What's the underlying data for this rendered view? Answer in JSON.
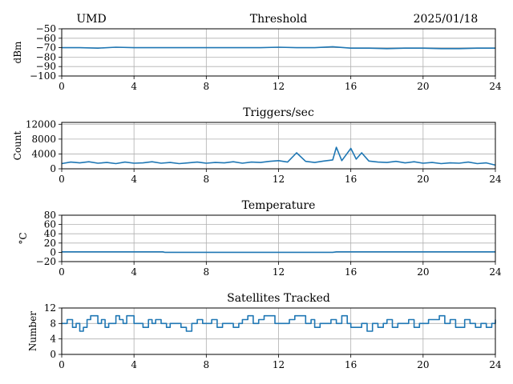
{
  "header": {
    "station": "UMD",
    "date": "2025/01/18"
  },
  "colors": {
    "line": "#1f77b4",
    "grid": "#b0b0b0",
    "axis": "#000000"
  },
  "chart_data": [
    {
      "type": "line",
      "title": "Threshold",
      "ylabel": "dBm",
      "xlim": [
        0,
        24
      ],
      "ylim": [
        -100,
        -50
      ],
      "xticks": [
        "0",
        "4",
        "8",
        "12",
        "16",
        "20",
        "24"
      ],
      "yticks": [
        "−50",
        "−60",
        "−70",
        "−80",
        "−90",
        "−100"
      ],
      "grid": true,
      "series": [
        {
          "x": [
            0,
            1,
            2,
            3,
            4,
            5,
            6,
            7,
            8,
            9,
            10,
            11,
            12,
            13,
            14,
            15,
            16,
            17,
            18,
            19,
            20,
            21,
            22,
            23,
            24
          ],
          "y": [
            -70,
            -70,
            -70.5,
            -69.5,
            -70,
            -70,
            -70,
            -70,
            -70,
            -70,
            -70,
            -70,
            -69.5,
            -70,
            -70,
            -69,
            -70.5,
            -70.5,
            -71,
            -70.5,
            -70.5,
            -71,
            -71,
            -70.5,
            -70.5
          ]
        }
      ]
    },
    {
      "type": "line",
      "title": "Triggers/sec",
      "ylabel": "Count",
      "xlim": [
        0,
        24
      ],
      "ylim": [
        0,
        12500
      ],
      "xticks": [
        "0",
        "4",
        "8",
        "12",
        "16",
        "20",
        "24"
      ],
      "yticks": [
        "12000",
        "8000",
        "4000",
        "0"
      ],
      "grid": true,
      "series": [
        {
          "x": [
            0,
            0.5,
            1,
            1.5,
            2,
            2.5,
            3,
            3.5,
            4,
            4.5,
            5,
            5.5,
            6,
            6.5,
            7,
            7.5,
            8,
            8.5,
            9,
            9.5,
            10,
            10.5,
            11,
            11.5,
            12,
            12.5,
            13,
            13.5,
            14,
            14.5,
            15,
            15.2,
            15.5,
            16,
            16.3,
            16.6,
            17,
            17.5,
            18,
            18.5,
            19,
            19.5,
            20,
            20.5,
            21,
            21.5,
            22,
            22.5,
            23,
            23.5,
            24
          ],
          "y": [
            1400,
            1800,
            1600,
            1900,
            1500,
            1700,
            1400,
            1800,
            1500,
            1600,
            1900,
            1500,
            1700,
            1400,
            1600,
            1800,
            1500,
            1700,
            1600,
            1900,
            1500,
            1800,
            1700,
            2000,
            2200,
            1800,
            4300,
            2000,
            1700,
            2100,
            2400,
            5800,
            2200,
            5500,
            2600,
            4300,
            2100,
            1800,
            1700,
            2000,
            1600,
            1900,
            1500,
            1700,
            1400,
            1600,
            1500,
            1800,
            1400,
            1600,
            1000
          ]
        }
      ]
    },
    {
      "type": "line",
      "title": "Temperature",
      "ylabel": "°C",
      "xlim": [
        0,
        24
      ],
      "ylim": [
        -20,
        80
      ],
      "xticks": [
        "0",
        "4",
        "8",
        "12",
        "16",
        "20",
        "24"
      ],
      "yticks": [
        "80",
        "60",
        "40",
        "20",
        "0",
        "−20"
      ],
      "grid": true,
      "series": [
        {
          "x": [
            0,
            2,
            4,
            5.6,
            5.7,
            8,
            12,
            15,
            15.2,
            18,
            20,
            24
          ],
          "y": [
            1,
            1,
            1,
            1,
            0,
            0,
            0,
            0,
            1,
            1,
            1,
            1
          ]
        }
      ]
    },
    {
      "type": "line",
      "title": "Satellites Tracked",
      "ylabel": "Number",
      "xlim": [
        0,
        24
      ],
      "ylim": [
        0,
        12
      ],
      "xticks": [
        "0",
        "4",
        "8",
        "12",
        "16",
        "20",
        "24"
      ],
      "yticks": [
        "12",
        "8",
        "4",
        "0"
      ],
      "grid": true,
      "series": [
        {
          "x": [
            0,
            0.3,
            0.6,
            0.8,
            1,
            1.2,
            1.4,
            1.6,
            1.8,
            2,
            2.2,
            2.4,
            2.6,
            2.8,
            3,
            3.2,
            3.4,
            3.6,
            3.8,
            4,
            4.2,
            4.5,
            4.8,
            5,
            5.2,
            5.5,
            5.8,
            6,
            6.3,
            6.6,
            6.9,
            7.2,
            7.5,
            7.8,
            8,
            8.3,
            8.6,
            8.9,
            9.2,
            9.5,
            9.8,
            10,
            10.3,
            10.6,
            10.9,
            11.2,
            11.5,
            11.8,
            12,
            12.3,
            12.6,
            12.9,
            13.2,
            13.5,
            13.8,
            14,
            14.3,
            14.6,
            14.9,
            15.2,
            15.5,
            15.8,
            16,
            16.3,
            16.6,
            16.9,
            17.2,
            17.5,
            17.8,
            18,
            18.3,
            18.6,
            18.9,
            19.2,
            19.5,
            19.8,
            20,
            20.3,
            20.6,
            20.9,
            21.2,
            21.5,
            21.8,
            22,
            22.3,
            22.6,
            22.9,
            23.2,
            23.5,
            23.8,
            24
          ],
          "y": [
            8,
            9,
            7,
            8,
            6,
            7,
            9,
            10,
            10,
            8,
            9,
            7,
            8,
            8,
            10,
            9,
            8,
            10,
            10,
            8,
            8,
            7,
            9,
            8,
            9,
            8,
            7,
            8,
            8,
            7,
            6,
            8,
            9,
            8,
            8,
            9,
            7,
            8,
            8,
            7,
            8,
            9,
            10,
            8,
            9,
            10,
            10,
            8,
            8,
            8,
            9,
            10,
            10,
            8,
            9,
            7,
            8,
            8,
            9,
            8,
            10,
            8,
            7,
            7,
            8,
            6,
            8,
            7,
            8,
            9,
            7,
            8,
            8,
            9,
            7,
            8,
            8,
            9,
            9,
            10,
            8,
            9,
            7,
            7,
            9,
            8,
            7,
            8,
            7,
            8,
            9
          ]
        }
      ]
    }
  ]
}
